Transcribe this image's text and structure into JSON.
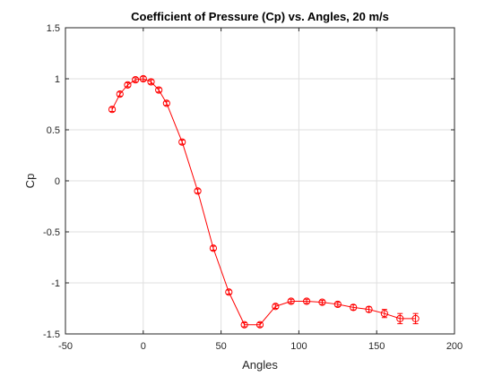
{
  "chart_data": {
    "type": "line",
    "title": "Coefficient of Pressure (Cp) vs. Angles, 20 m/s",
    "xlabel": "Angles",
    "ylabel": "Cp",
    "xlim": [
      -50,
      200
    ],
    "ylim": [
      -1.5,
      1.5
    ],
    "xticks": [
      -50,
      0,
      50,
      100,
      150,
      200
    ],
    "xtick_labels": [
      "-50",
      "0",
      "50",
      "100",
      "150",
      "200"
    ],
    "yticks": [
      -1.5,
      -1,
      -0.5,
      0,
      0.5,
      1,
      1.5
    ],
    "ytick_labels": [
      "-1.5",
      "-1",
      "-0.5",
      "0",
      "0.5",
      "1",
      "1.5"
    ],
    "grid": true,
    "box": true,
    "series": [
      {
        "color": "#ff0000",
        "marker": "circle",
        "errorbars": true,
        "x": [
          -20,
          -15,
          -10,
          -5,
          0,
          5,
          10,
          15,
          25,
          35,
          45,
          55,
          65,
          75,
          85,
          95,
          105,
          115,
          125,
          135,
          145,
          155,
          165,
          175
        ],
        "y": [
          0.7,
          0.85,
          0.94,
          0.99,
          1.0,
          0.97,
          0.89,
          0.76,
          0.38,
          -0.1,
          -0.66,
          -1.09,
          -1.41,
          -1.41,
          -1.23,
          -1.18,
          -1.18,
          -1.19,
          -1.21,
          -1.24,
          -1.26,
          -1.3,
          -1.35,
          -1.35
        ],
        "error": [
          0.02,
          0.02,
          0.02,
          0.02,
          0.02,
          0.02,
          0.02,
          0.02,
          0.02,
          0.02,
          0.02,
          0.02,
          0.02,
          0.02,
          0.02,
          0.02,
          0.02,
          0.02,
          0.02,
          0.025,
          0.025,
          0.04,
          0.05,
          0.05
        ]
      }
    ]
  }
}
